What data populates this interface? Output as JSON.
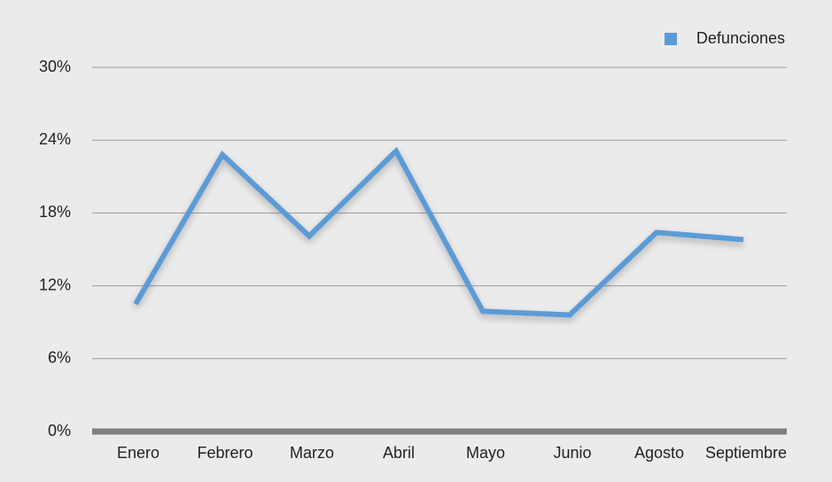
{
  "chart_data": {
    "type": "line",
    "categories": [
      "Enero",
      "Febrero",
      "Marzo",
      "Abril",
      "Mayo",
      "Junio",
      "Agosto",
      "Septiembre"
    ],
    "series": [
      {
        "name": "Defunciones",
        "color": "#5b9bd5",
        "values": [
          10.5,
          22.8,
          16.1,
          23.1,
          9.9,
          9.6,
          16.4,
          15.8
        ]
      }
    ],
    "ylim": [
      0,
      30
    ],
    "yticks": [
      {
        "value": 0,
        "label": "0%"
      },
      {
        "value": 6,
        "label": "6%"
      },
      {
        "value": 12,
        "label": "12%"
      },
      {
        "value": 18,
        "label": "18%"
      },
      {
        "value": 24,
        "label": "24%"
      },
      {
        "value": 30,
        "label": "30%"
      }
    ],
    "grid": true,
    "legend": "top-right"
  }
}
